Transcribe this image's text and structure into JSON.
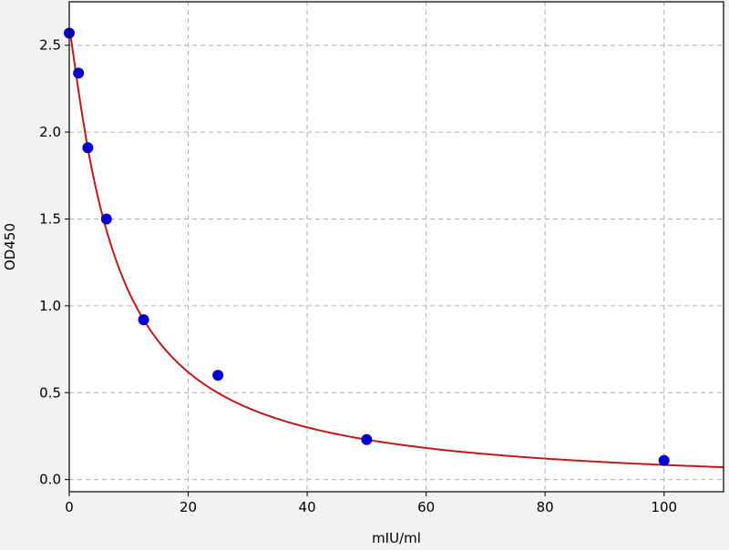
{
  "chart_data": {
    "type": "scatter",
    "title": "",
    "xlabel": "mIU/ml",
    "ylabel": "OD450",
    "xlim": [
      0,
      110
    ],
    "ylim": [
      -0.07,
      2.75
    ],
    "xticks": [
      0,
      20,
      40,
      60,
      80,
      100
    ],
    "xtick_labels": [
      "0",
      "20",
      "40",
      "60",
      "80",
      "100"
    ],
    "yticks": [
      0.0,
      0.5,
      1.0,
      1.5,
      2.0,
      2.5
    ],
    "ytick_labels": [
      "0.0",
      "0.5",
      "1.0",
      "1.5",
      "2.0",
      "2.5"
    ],
    "grid": true,
    "points": {
      "x": [
        0,
        1.5625,
        3.125,
        6.25,
        12.5,
        25,
        50,
        100
      ],
      "y": [
        2.57,
        2.34,
        1.91,
        1.5,
        0.92,
        0.6,
        0.23,
        0.11
      ],
      "color": "#0000cc"
    },
    "fit_curve": {
      "model": "4PL",
      "top": 2.6,
      "bottom": -0.05,
      "ec50": 7.74,
      "hill": 1.145,
      "color": "#c0181c"
    }
  }
}
